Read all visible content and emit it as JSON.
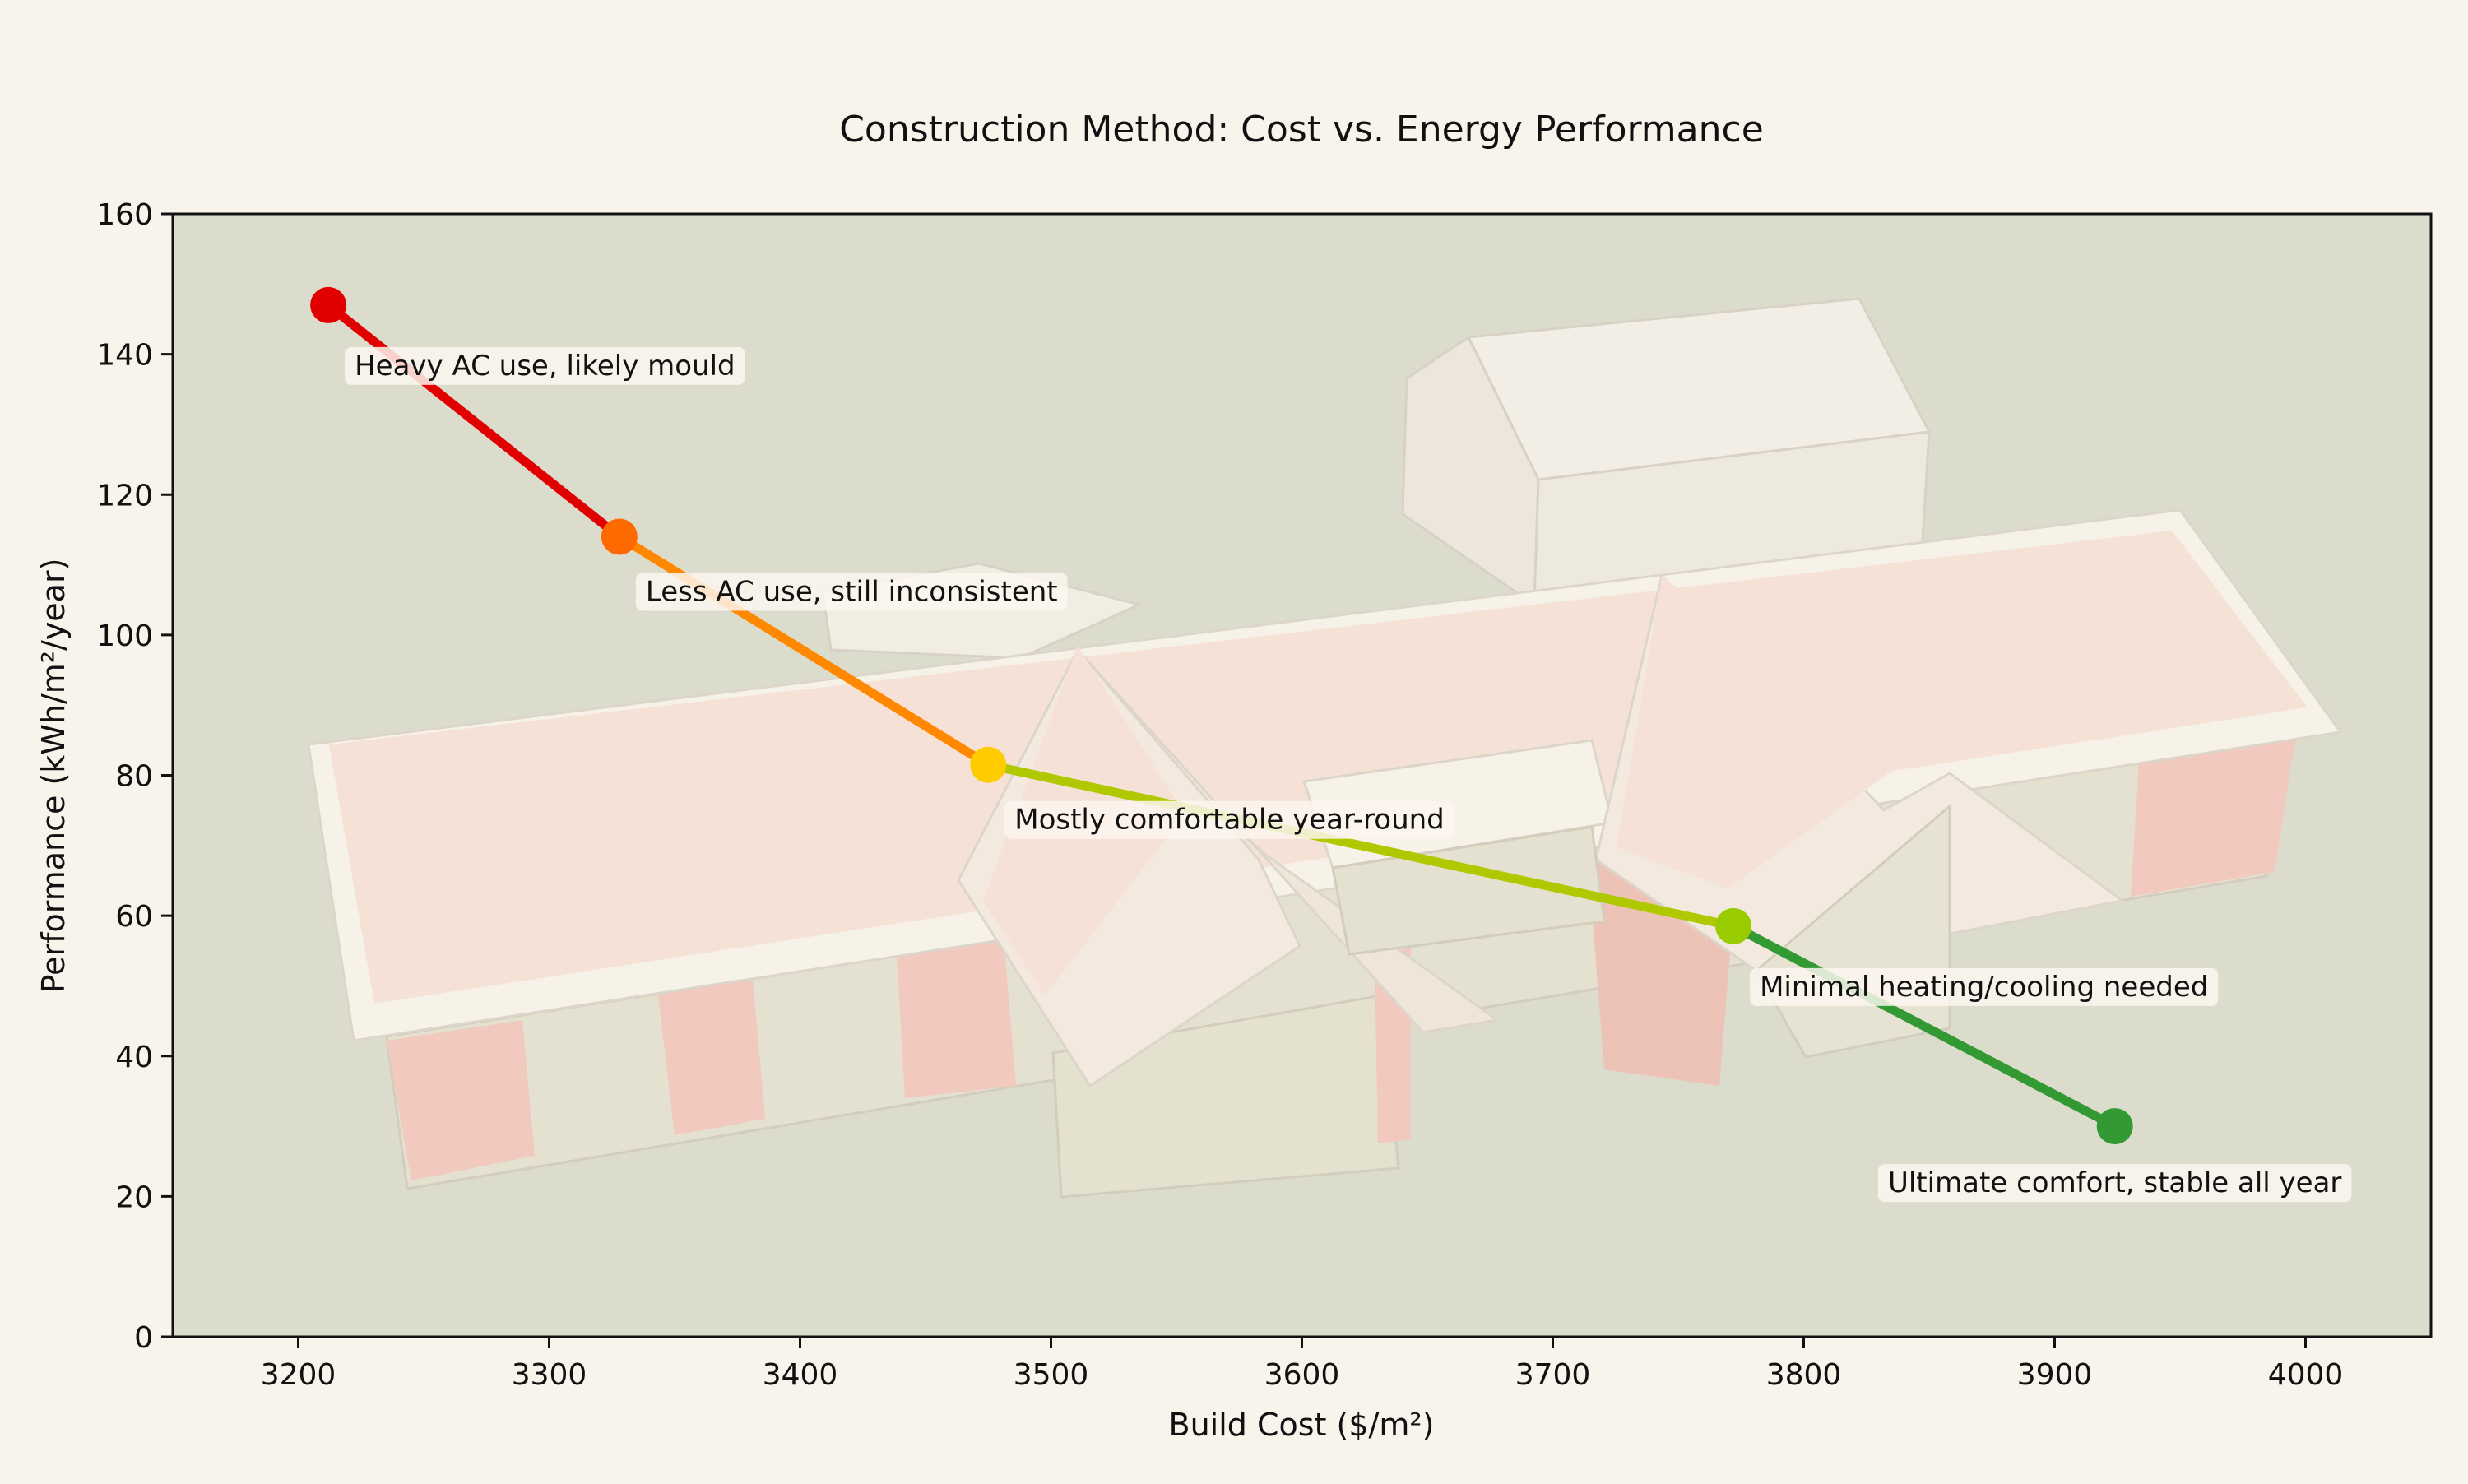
{
  "chart_data": {
    "type": "line",
    "title": "Construction Method: Cost vs. Energy Performance",
    "xlabel": "Build Cost ($/m²)",
    "ylabel": "Performance (kWh/m²/year)",
    "xlim": [
      3150,
      4050
    ],
    "ylim": [
      0,
      160
    ],
    "xticks": [
      3200,
      3300,
      3400,
      3500,
      3600,
      3700,
      3800,
      3900,
      4000
    ],
    "yticks": [
      0,
      20,
      40,
      60,
      80,
      100,
      120,
      140,
      160
    ],
    "grid": false,
    "legend": "none",
    "background_image": "house-illustration",
    "points": [
      {
        "x": 3212,
        "y": 147,
        "color": "#e00000",
        "label": "Heavy AC use, likely mould"
      },
      {
        "x": 3328,
        "y": 114,
        "color": "#ff6a00",
        "label": "Less AC use, still inconsistent"
      },
      {
        "x": 3475,
        "y": 81.5,
        "color": "#ffcc00",
        "label": "Mostly comfortable year-round"
      },
      {
        "x": 3772,
        "y": 58.5,
        "color": "#99cc00",
        "label": "Minimal heating/cooling needed"
      },
      {
        "x": 3924,
        "y": 30,
        "color": "#339933",
        "label": "Ultimate comfort, stable all year"
      }
    ],
    "segment_colors": [
      "#e00000",
      "#ff8800",
      "#b0c800",
      "#339933"
    ]
  }
}
